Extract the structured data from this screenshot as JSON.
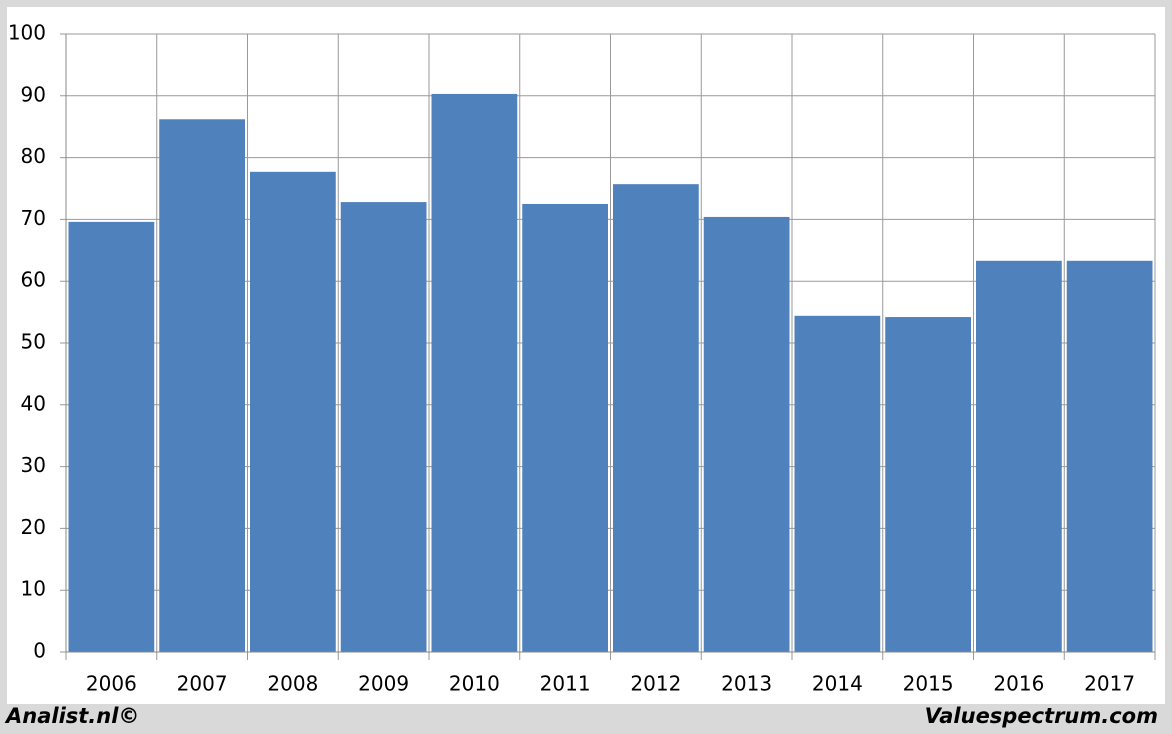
{
  "chart_data": {
    "type": "bar",
    "categories": [
      "2006",
      "2007",
      "2008",
      "2009",
      "2010",
      "2011",
      "2012",
      "2013",
      "2014",
      "2015",
      "2016",
      "2017"
    ],
    "values": [
      69.6,
      86.2,
      77.7,
      72.8,
      90.3,
      72.5,
      75.7,
      70.4,
      54.4,
      54.2,
      63.3,
      63.3
    ],
    "color": "#4f81bd",
    "ylim": [
      0,
      100
    ],
    "yticks": [
      0,
      10,
      20,
      30,
      40,
      50,
      60,
      70,
      80,
      90,
      100
    ],
    "grid": true,
    "annotations": [
      "Analist.nl©",
      "Valuespectrum.com"
    ]
  }
}
